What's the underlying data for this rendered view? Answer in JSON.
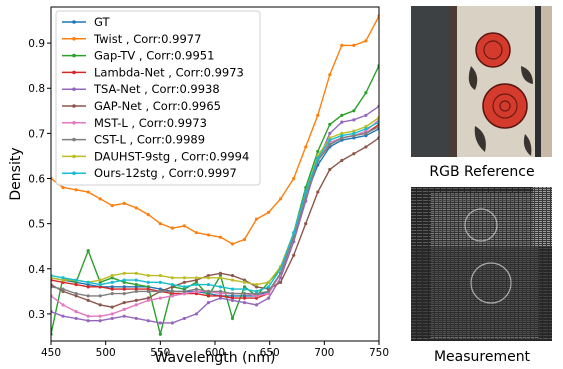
{
  "chart_data": {
    "type": "line",
    "xlabel": "Wavelength (nm)",
    "ylabel": "Density",
    "xlim": [
      450,
      750
    ],
    "ylim": [
      0.24,
      0.98
    ],
    "xticks": [
      450,
      500,
      550,
      600,
      650,
      700,
      750
    ],
    "yticks": [
      0.3,
      0.4,
      0.5,
      0.6,
      0.7,
      0.8,
      0.9
    ],
    "grid": false,
    "legend_position": "top-left",
    "x": [
      450,
      461,
      473,
      484,
      495,
      506,
      517,
      528,
      539,
      550,
      561,
      572,
      583,
      594,
      605,
      616,
      627,
      638,
      649,
      660,
      672,
      683,
      694,
      705,
      716,
      727,
      738,
      750
    ],
    "series": [
      {
        "name": "GT",
        "color": "#1f77b4",
        "values": [
          0.38,
          0.375,
          0.37,
          0.365,
          0.36,
          0.36,
          0.36,
          0.36,
          0.36,
          0.355,
          0.35,
          0.35,
          0.35,
          0.345,
          0.34,
          0.34,
          0.34,
          0.34,
          0.35,
          0.39,
          0.47,
          0.56,
          0.63,
          0.67,
          0.685,
          0.69,
          0.695,
          0.71
        ]
      },
      {
        "name": "Twist , Corr:0.9977",
        "color": "#ff7f0e",
        "values": [
          0.6,
          0.58,
          0.575,
          0.57,
          0.555,
          0.54,
          0.545,
          0.535,
          0.52,
          0.5,
          0.49,
          0.495,
          0.48,
          0.475,
          0.47,
          0.455,
          0.465,
          0.51,
          0.525,
          0.555,
          0.6,
          0.67,
          0.74,
          0.83,
          0.895,
          0.895,
          0.905,
          0.96
        ]
      },
      {
        "name": "Gap-TV , Corr:0.9951",
        "color": "#2ca02c",
        "values": [
          0.255,
          0.38,
          0.37,
          0.44,
          0.37,
          0.38,
          0.37,
          0.365,
          0.36,
          0.255,
          0.36,
          0.355,
          0.37,
          0.34,
          0.385,
          0.29,
          0.36,
          0.34,
          0.37,
          0.4,
          0.48,
          0.58,
          0.66,
          0.72,
          0.74,
          0.75,
          0.79,
          0.85
        ]
      },
      {
        "name": "Lambda-Net , Corr:0.9973",
        "color": "#d62728",
        "values": [
          0.375,
          0.37,
          0.365,
          0.36,
          0.36,
          0.355,
          0.355,
          0.355,
          0.355,
          0.35,
          0.345,
          0.345,
          0.345,
          0.34,
          0.34,
          0.335,
          0.335,
          0.335,
          0.345,
          0.39,
          0.47,
          0.56,
          0.64,
          0.675,
          0.69,
          0.695,
          0.7,
          0.72
        ]
      },
      {
        "name": "TSA-Net , Corr:0.9938",
        "color": "#9467bd",
        "values": [
          0.305,
          0.295,
          0.29,
          0.285,
          0.285,
          0.29,
          0.295,
          0.29,
          0.285,
          0.28,
          0.28,
          0.29,
          0.3,
          0.325,
          0.335,
          0.33,
          0.325,
          0.32,
          0.335,
          0.38,
          0.46,
          0.55,
          0.64,
          0.7,
          0.725,
          0.73,
          0.74,
          0.76
        ]
      },
      {
        "name": "GAP-Net , Corr:0.9965",
        "color": "#8c564b",
        "values": [
          0.365,
          0.35,
          0.34,
          0.33,
          0.32,
          0.315,
          0.325,
          0.33,
          0.335,
          0.35,
          0.36,
          0.37,
          0.375,
          0.385,
          0.39,
          0.385,
          0.375,
          0.36,
          0.355,
          0.37,
          0.43,
          0.5,
          0.57,
          0.62,
          0.64,
          0.655,
          0.67,
          0.69
        ]
      },
      {
        "name": "MST-L , Corr:0.9973",
        "color": "#e377c2",
        "values": [
          0.34,
          0.32,
          0.305,
          0.295,
          0.295,
          0.3,
          0.31,
          0.32,
          0.33,
          0.335,
          0.34,
          0.345,
          0.35,
          0.35,
          0.345,
          0.345,
          0.345,
          0.34,
          0.345,
          0.39,
          0.47,
          0.56,
          0.64,
          0.68,
          0.69,
          0.695,
          0.705,
          0.73
        ]
      },
      {
        "name": "CST-L , Corr:0.9989",
        "color": "#7f7f7f",
        "values": [
          0.36,
          0.355,
          0.345,
          0.34,
          0.34,
          0.345,
          0.345,
          0.35,
          0.35,
          0.35,
          0.35,
          0.35,
          0.355,
          0.35,
          0.35,
          0.345,
          0.345,
          0.345,
          0.35,
          0.39,
          0.47,
          0.56,
          0.64,
          0.675,
          0.69,
          0.695,
          0.7,
          0.715
        ]
      },
      {
        "name": "DAUHST-9stg , Corr:0.9994",
        "color": "#bcbd22",
        "values": [
          0.38,
          0.375,
          0.375,
          0.37,
          0.375,
          0.385,
          0.39,
          0.39,
          0.385,
          0.385,
          0.38,
          0.38,
          0.38,
          0.38,
          0.38,
          0.375,
          0.37,
          0.365,
          0.37,
          0.405,
          0.48,
          0.57,
          0.65,
          0.69,
          0.7,
          0.705,
          0.715,
          0.735
        ]
      },
      {
        "name": "Ours-12stg , Corr:0.9997",
        "color": "#17becf",
        "values": [
          0.385,
          0.38,
          0.375,
          0.37,
          0.365,
          0.37,
          0.375,
          0.375,
          0.37,
          0.37,
          0.365,
          0.36,
          0.365,
          0.365,
          0.36,
          0.355,
          0.355,
          0.35,
          0.36,
          0.4,
          0.48,
          0.57,
          0.645,
          0.685,
          0.695,
          0.7,
          0.71,
          0.725
        ]
      }
    ]
  },
  "captions": {
    "rgb": "RGB Reference",
    "measurement": "Measurement"
  }
}
